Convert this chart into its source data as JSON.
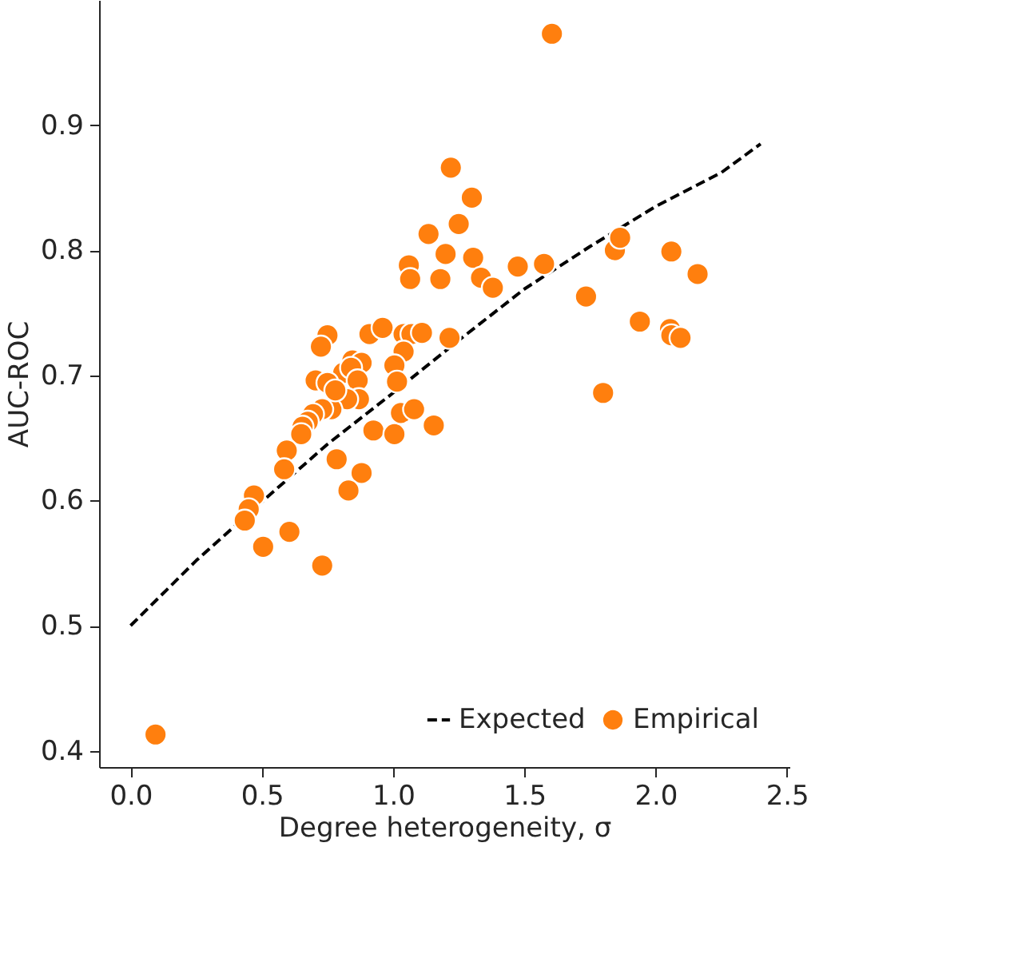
{
  "chart_data": {
    "type": "scatter",
    "xlabel": "Degree heterogeneity, σ",
    "ylabel": "AUC-ROC",
    "xlim": [
      -0.12,
      2.51
    ],
    "ylim": [
      0.387,
      1.0
    ],
    "xticks": [
      {
        "value": 0,
        "label": "0.0"
      },
      0.5,
      {
        "value": 1,
        "label": "1.0"
      },
      1.5,
      {
        "value": 2,
        "label": "2.0"
      },
      2.5
    ],
    "yticks": [
      0.4,
      0.5,
      0.6,
      0.7,
      0.8,
      0.9
    ],
    "grid": false,
    "legend": "bottom right",
    "series": [
      {
        "name": "Expected",
        "type": "line",
        "line_style": "dashed",
        "color": "#000000",
        "x": [
          0,
          0.25,
          0.5,
          0.75,
          1.0,
          1.25,
          1.5,
          1.75,
          2.0,
          2.25,
          2.4
        ],
        "values": [
          0.5,
          0.552,
          0.599,
          0.645,
          0.686,
          0.728,
          0.769,
          0.803,
          0.835,
          0.862,
          0.885
        ]
      },
      {
        "name": "Empirical",
        "marker": "circle",
        "color": "#ff7f0e",
        "x": [
          1.25,
          1.135,
          1.2,
          1.305,
          1.06,
          1.065,
          1.18,
          1.335,
          1.38,
          1.475,
          1.575,
          1.3,
          1.22,
          0.75,
          0.725,
          0.91,
          0.96,
          1.04,
          1.07,
          1.11,
          1.215,
          1.04,
          1.005,
          1.015,
          0.845,
          0.88,
          0.705,
          0.81,
          0.84,
          0.865,
          0.87,
          0.825,
          0.765,
          0.73,
          0.695,
          0.675,
          0.655,
          0.65,
          0.595,
          0.585,
          0.785,
          0.925,
          1.005,
          1.03,
          1.08,
          1.155,
          0.88,
          0.83,
          0.47,
          0.45,
          0.435,
          0.605,
          0.505,
          0.73,
          0.095,
          1.605,
          1.845,
          1.865,
          2.06,
          2.16,
          1.735,
          1.94,
          2.055,
          2.06,
          2.095,
          1.8,
          0.75,
          0.78
        ],
        "values": [
          0.821,
          0.813,
          0.797,
          0.794,
          0.788,
          0.777,
          0.777,
          0.778,
          0.77,
          0.787,
          0.789,
          0.842,
          0.866,
          0.732,
          0.723,
          0.733,
          0.738,
          0.733,
          0.733,
          0.734,
          0.73,
          0.719,
          0.708,
          0.695,
          0.712,
          0.71,
          0.696,
          0.702,
          0.706,
          0.696,
          0.681,
          0.681,
          0.673,
          0.673,
          0.669,
          0.663,
          0.659,
          0.653,
          0.64,
          0.625,
          0.633,
          0.656,
          0.653,
          0.67,
          0.673,
          0.66,
          0.622,
          0.608,
          0.604,
          0.593,
          0.584,
          0.575,
          0.563,
          0.548,
          0.413,
          0.973,
          0.8,
          0.81,
          0.799,
          0.781,
          0.763,
          0.743,
          0.737,
          0.732,
          0.73,
          0.686,
          0.694,
          0.688
        ]
      }
    ]
  }
}
